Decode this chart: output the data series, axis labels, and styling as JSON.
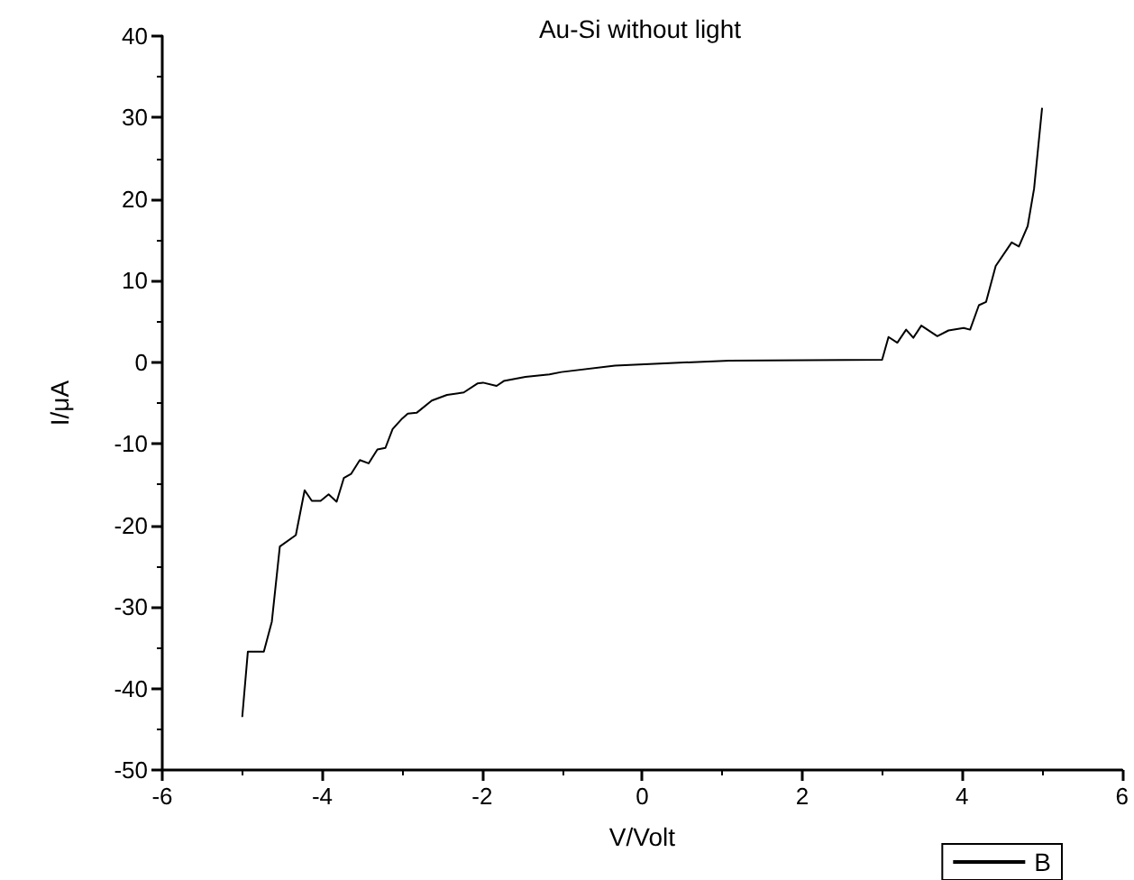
{
  "chart_data": {
    "type": "line",
    "title": "Au-Si without light",
    "xlabel": "V/Volt",
    "ylabel": "I/μA",
    "xlim": [
      -6,
      6
    ],
    "xticks": [
      -6,
      -4,
      -2,
      0,
      2,
      4,
      6
    ],
    "ylim": [
      -50,
      40
    ],
    "yticks": [
      -50,
      -40,
      -30,
      -20,
      -10,
      0,
      10,
      20,
      30,
      40
    ],
    "grid": false,
    "legend": "bottom right",
    "marker": "none",
    "line_style": "solid",
    "series": [
      {
        "name": "B",
        "color": "#000000",
        "x": [
          -5.0,
          -4.93,
          -4.73,
          -4.63,
          -4.53,
          -4.33,
          -4.22,
          -4.13,
          -4.02,
          -3.92,
          -3.82,
          -3.73,
          -3.64,
          -3.53,
          -3.42,
          -3.31,
          -3.21,
          -3.12,
          -3.0,
          -2.93,
          -2.82,
          -2.63,
          -2.44,
          -2.23,
          -2.06,
          -1.99,
          -1.82,
          -1.73,
          -1.46,
          -1.16,
          -1.01,
          -0.34,
          0.34,
          1.09,
          3.0,
          3.08,
          3.19,
          3.3,
          3.39,
          3.49,
          3.69,
          3.83,
          4.02,
          4.1,
          4.21,
          4.3,
          4.42,
          4.62,
          4.71,
          4.82,
          4.9,
          5.0
        ],
        "values": [
          -43.5,
          -35.5,
          -35.5,
          -31.8,
          -22.6,
          -21.2,
          -15.7,
          -17.0,
          -17.0,
          -16.2,
          -17.1,
          -14.2,
          -13.7,
          -12.0,
          -12.4,
          -10.7,
          -10.5,
          -8.2,
          -6.9,
          -6.3,
          -6.2,
          -4.7,
          -4.0,
          -3.7,
          -2.6,
          -2.5,
          -2.9,
          -2.3,
          -1.8,
          -1.5,
          -1.2,
          -0.4,
          -0.1,
          0.2,
          0.3,
          3.1,
          2.4,
          4.0,
          3.0,
          4.5,
          3.2,
          3.9,
          4.2,
          4.0,
          7.0,
          7.4,
          11.8,
          14.7,
          14.2,
          16.7,
          21.3,
          31.2
        ]
      }
    ]
  }
}
